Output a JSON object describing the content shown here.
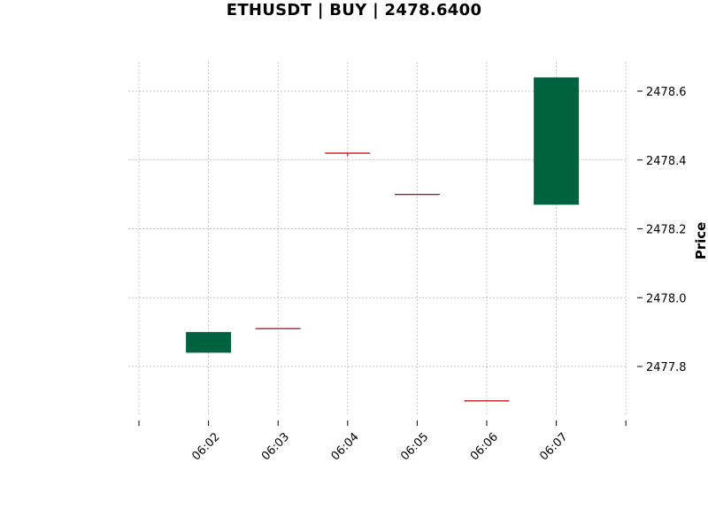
{
  "chart_data": {
    "type": "candlestick",
    "title": "ETHUSDT | BUY | 2478.6400",
    "ylabel": "Price",
    "xlabel": "",
    "ylim": [
      2477.65,
      2478.69
    ],
    "y_ticks": [
      2477.8,
      2478.0,
      2478.2,
      2478.4,
      2478.6
    ],
    "y_tick_labels": [
      "2477.8",
      "2478.0",
      "2478.2",
      "2478.4",
      "2478.6"
    ],
    "categories": [
      "06:02",
      "06:03",
      "06:04",
      "06:05",
      "06:06",
      "06:07"
    ],
    "candles": [
      {
        "time": "06:02",
        "open": 2477.84,
        "high": 2477.9,
        "low": 2477.84,
        "close": 2477.9
      },
      {
        "time": "06:03",
        "open": 2477.91,
        "high": 2477.91,
        "low": 2477.91,
        "close": 2477.91
      },
      {
        "time": "06:04",
        "open": 2478.42,
        "high": 2478.42,
        "low": 2478.41,
        "close": 2478.42
      },
      {
        "time": "06:05",
        "open": 2478.3,
        "high": 2478.3,
        "low": 2478.3,
        "close": 2478.3
      },
      {
        "time": "06:06",
        "open": 2477.7,
        "high": 2477.7,
        "low": 2477.7,
        "close": 2477.7
      },
      {
        "time": "06:07",
        "open": 2478.27,
        "high": 2478.64,
        "low": 2478.27,
        "close": 2478.64
      }
    ],
    "grid": true,
    "y_axis_side": "right",
    "colors": {
      "up": "#006340",
      "flat": "#c00000",
      "grid": "#b0b0b0"
    }
  }
}
